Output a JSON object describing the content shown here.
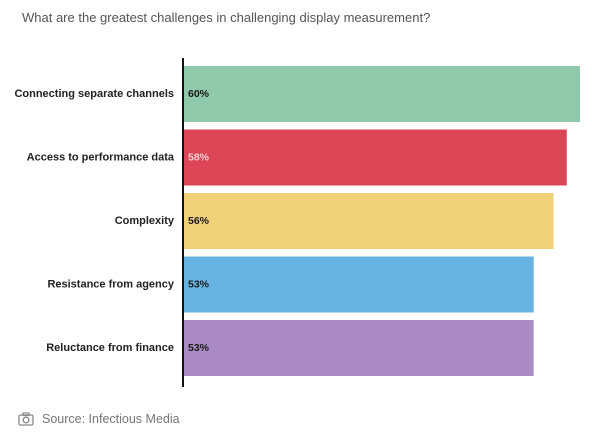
{
  "page": {
    "title": "What are the greatest challenges in challenging display measurement?",
    "source_text": "Source: Infectious Media",
    "source_icon": "camera-icon"
  },
  "chart_data": {
    "type": "bar",
    "orientation": "horizontal",
    "title": "What are the greatest challenges in challenging display measurement?",
    "xlabel": "",
    "ylabel": "",
    "xlim": [
      0,
      60
    ],
    "categories": [
      "Connecting separate channels",
      "Access to performance data",
      "Complexity",
      "Resistance from agency",
      "Reluctance from finance"
    ],
    "values": [
      60,
      58,
      56,
      53,
      53
    ],
    "value_labels": [
      "60%",
      "58%",
      "56%",
      "53%",
      "53%"
    ],
    "colors": [
      "#90c8ac",
      "#dc4556",
      "#efd178",
      "#67b4e2",
      "#aa8bc6"
    ],
    "label_colors": [
      "#1a1a1a",
      "#f5cdd2",
      "#1a1a1a",
      "#1a1a1a",
      "#1a1a1a"
    ],
    "grid": false,
    "legend": "none"
  }
}
